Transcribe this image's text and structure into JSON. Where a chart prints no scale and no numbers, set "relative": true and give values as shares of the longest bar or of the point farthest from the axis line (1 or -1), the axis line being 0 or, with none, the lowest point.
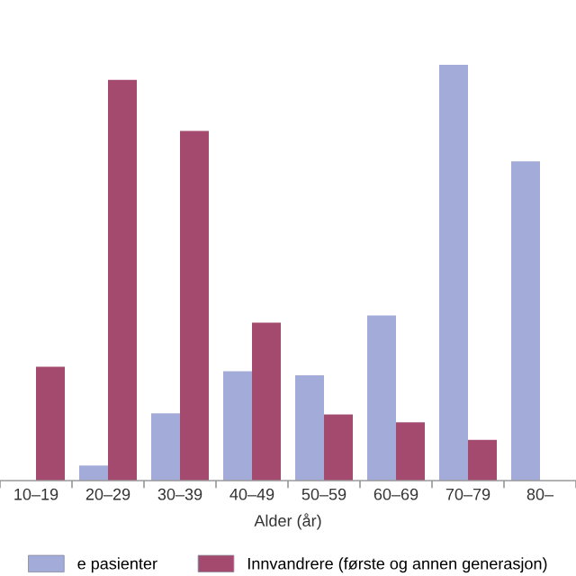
{
  "chart_data": {
    "type": "bar",
    "relative": true,
    "xlabel": "Alder (år)",
    "categories": [
      "10–19",
      "20–29",
      "30–39",
      "40–49",
      "50–59",
      "60–69",
      "70–79",
      "80–"
    ],
    "series": [
      {
        "name": "e pasienter",
        "color": "#a3acd8",
        "values": [
          0,
          0.036,
          0.162,
          0.263,
          0.253,
          0.397,
          1,
          0.768
        ]
      },
      {
        "name": "Innvandrere (første og annen generasjon)",
        "color": "#a34a6e",
        "values": [
          0.274,
          0.964,
          0.841,
          0.38,
          0.159,
          0.14,
          0.098,
          null
        ]
      }
    ],
    "legend": "bottom",
    "grid": false
  }
}
